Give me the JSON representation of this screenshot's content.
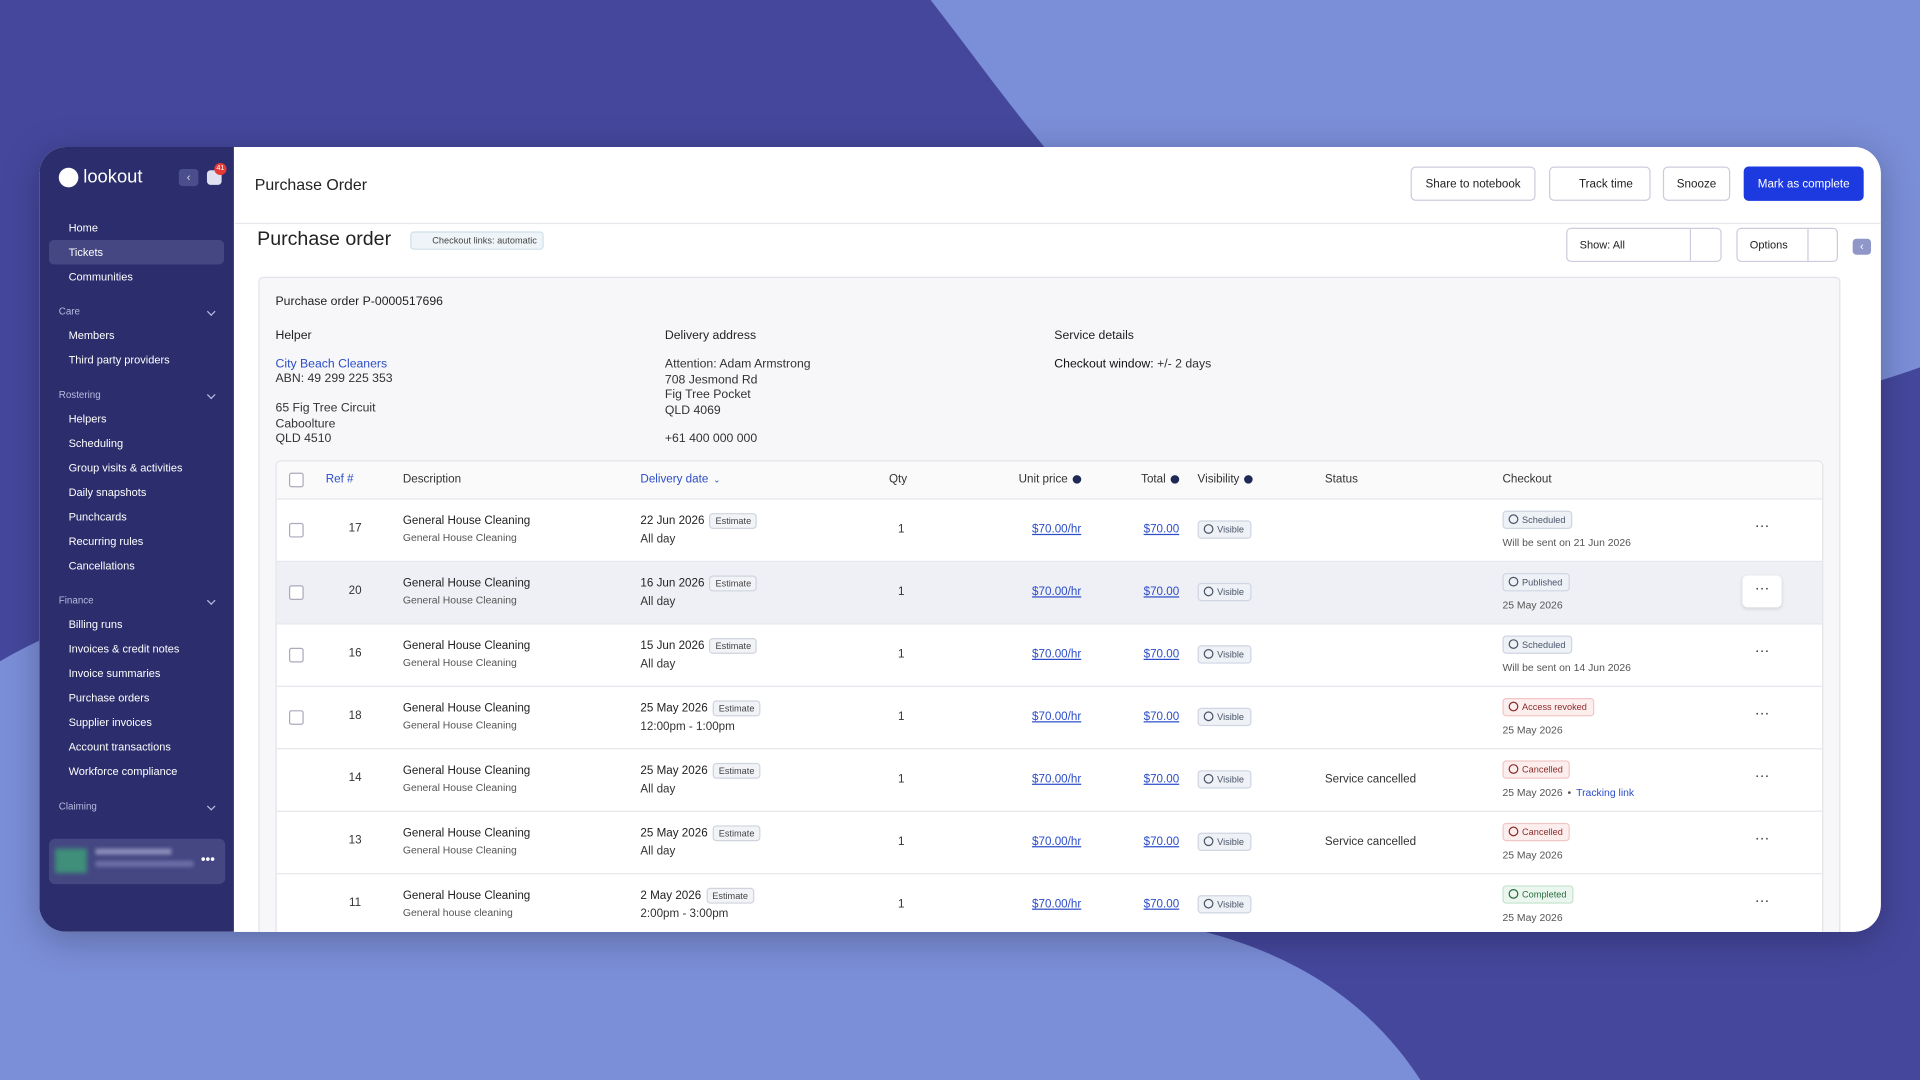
{
  "app": {
    "brand": "lookout",
    "notification_count": 41
  },
  "sidebar": {
    "items": [
      "Home",
      "Tickets",
      "Communities"
    ],
    "active": "Tickets",
    "sections": [
      {
        "title": "Care",
        "items": [
          "Members",
          "Third party providers"
        ]
      },
      {
        "title": "Rostering",
        "items": [
          "Helpers",
          "Scheduling",
          "Group visits & activities",
          "Daily snapshots",
          "Punchcards",
          "Recurring rules",
          "Cancellations"
        ]
      },
      {
        "title": "Finance",
        "items": [
          "Billing runs",
          "Invoices & credit notes",
          "Invoice summaries",
          "Purchase orders",
          "Supplier invoices",
          "Account transactions",
          "Workforce compliance"
        ]
      },
      {
        "title": "Claiming",
        "items": []
      }
    ]
  },
  "header": {
    "title": "Purchase Order",
    "actions": [
      "Share to notebook",
      "Track time",
      "Snooze",
      "Mark as complete"
    ]
  },
  "page": {
    "title": "Purchase order",
    "badge": "Checkout links: automatic",
    "filter": "Show: All",
    "options": "Options"
  },
  "order": {
    "number": "Purchase order P-0000517696",
    "helper": {
      "label": "Helper",
      "name": "City Beach Cleaners",
      "abn": "ABN: 49 299 225 353",
      "address": [
        "65 Fig Tree Circuit",
        "Caboolture",
        "QLD 4510"
      ]
    },
    "delivery": {
      "label": "Delivery address",
      "lines": [
        "Attention: Adam Armstrong",
        "708 Jesmond Rd",
        "Fig Tree Pocket",
        "QLD 4069"
      ],
      "phone": "+61 400 000 000"
    },
    "service": {
      "label": "Service details",
      "key": "Checkout window:",
      "value": "+/- 2 days"
    }
  },
  "table": {
    "columns": [
      "Ref #",
      "Description",
      "Delivery date",
      "Qty",
      "Unit price",
      "Total",
      "Visibility",
      "Status",
      "Checkout"
    ],
    "rows": [
      {
        "ref": 17,
        "description": "General House Cleaning",
        "subdescription": "General House Cleaning",
        "date": "22 Jun 2026",
        "estimate": "Estimate",
        "time": "All day",
        "qty": 1,
        "unit_price": "$70.00/hr",
        "total": "$70.00",
        "visibility": "Visible",
        "status": null,
        "checkout": "Scheduled",
        "tone": "neutral",
        "checkout_note": "Will be sent on 21 Jun 2026",
        "link": null,
        "checkbox": true,
        "highlight": false
      },
      {
        "ref": 20,
        "description": "General House Cleaning",
        "subdescription": "General House Cleaning",
        "date": "16 Jun 2026",
        "estimate": "Estimate",
        "time": "All day",
        "qty": 1,
        "unit_price": "$70.00/hr",
        "total": "$70.00",
        "visibility": "Visible",
        "status": null,
        "checkout": "Published",
        "tone": "neutral",
        "checkout_note": "25 May 2026",
        "link": null,
        "checkbox": true,
        "highlight": true
      },
      {
        "ref": 16,
        "description": "General House Cleaning",
        "subdescription": "General House Cleaning",
        "date": "15 Jun 2026",
        "estimate": "Estimate",
        "time": "All day",
        "qty": 1,
        "unit_price": "$70.00/hr",
        "total": "$70.00",
        "visibility": "Visible",
        "status": null,
        "checkout": "Scheduled",
        "tone": "neutral",
        "checkout_note": "Will be sent on 14 Jun 2026",
        "link": null,
        "checkbox": true,
        "highlight": false
      },
      {
        "ref": 18,
        "description": "General House Cleaning",
        "subdescription": "General House Cleaning",
        "date": "25 May 2026",
        "estimate": "Estimate",
        "time": "12:00pm - 1:00pm",
        "qty": 1,
        "unit_price": "$70.00/hr",
        "total": "$70.00",
        "visibility": "Visible",
        "status": null,
        "checkout": "Access revoked",
        "tone": "red",
        "checkout_note": "25 May 2026",
        "link": null,
        "checkbox": true,
        "highlight": false
      },
      {
        "ref": 14,
        "description": "General House Cleaning",
        "subdescription": "General House Cleaning",
        "date": "25 May 2026",
        "estimate": "Estimate",
        "time": "All day",
        "qty": 1,
        "unit_price": "$70.00/hr",
        "total": "$70.00",
        "visibility": "Visible",
        "status": "Service cancelled",
        "checkout": "Cancelled",
        "tone": "red",
        "checkout_note": "25 May 2026",
        "link": "Tracking link",
        "checkbox": false,
        "highlight": false
      },
      {
        "ref": 13,
        "description": "General House Cleaning",
        "subdescription": "General House Cleaning",
        "date": "25 May 2026",
        "estimate": "Estimate",
        "time": "All day",
        "qty": 1,
        "unit_price": "$70.00/hr",
        "total": "$70.00",
        "visibility": "Visible",
        "status": "Service cancelled",
        "checkout": "Cancelled",
        "tone": "red",
        "checkout_note": "25 May 2026",
        "link": null,
        "checkbox": false,
        "highlight": false
      },
      {
        "ref": 11,
        "description": "General House Cleaning",
        "subdescription": "General house cleaning",
        "date": "2 May 2026",
        "estimate": "Estimate",
        "time": "2:00pm - 3:00pm",
        "qty": 1,
        "unit_price": "$70.00/hr",
        "total": "$70.00",
        "visibility": "Visible",
        "status": null,
        "checkout": "Completed",
        "tone": "green",
        "checkout_note": "25 May 2026",
        "link": null,
        "checkbox": false,
        "highlight": false
      }
    ]
  }
}
